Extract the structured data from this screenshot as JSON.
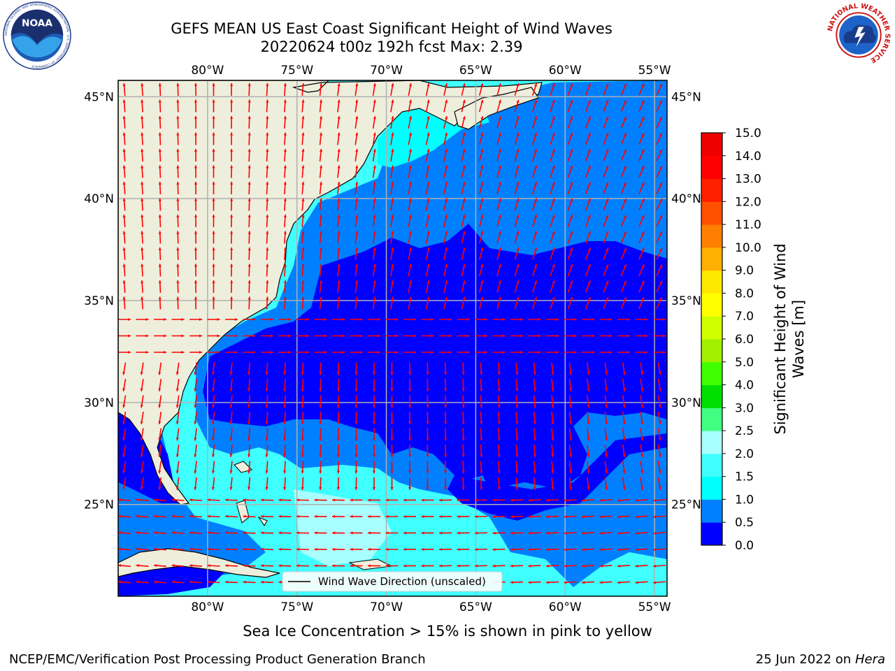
{
  "header": {
    "title_line1": "GEFS MEAN US East Coast Significant Height of Wind Waves",
    "title_line2": "20220624 t00z 192h fcst   Max: 2.39"
  },
  "logos": {
    "noaa_text": "NOAA",
    "noaa_ring_text": "NATIONAL OCEANIC AND ATMOSPHERIC ADMINISTRATION · U.S. DEPARTMENT OF COMMERCE",
    "nws_ring_text": "NATIONAL WEATHER SERVICE"
  },
  "map": {
    "lon_labels": [
      "80°W",
      "75°W",
      "70°W",
      "65°W",
      "60°W",
      "55°W"
    ],
    "lat_labels": [
      "45°N",
      "40°N",
      "35°N",
      "30°N",
      "25°N"
    ],
    "lon_values": [
      -80,
      -75,
      -70,
      -65,
      -60,
      -55
    ],
    "lat_values": [
      45,
      40,
      35,
      30,
      25
    ],
    "extent": {
      "lon": [
        -85,
        -54.3
      ],
      "lat": [
        20.5,
        45.8
      ]
    },
    "legend_label": "Wind Wave Direction (unscaled)",
    "colors": {
      "land": "#eeeedc",
      "arrows": "#ff0000",
      "grid": "#b0b0b0"
    }
  },
  "colorbar": {
    "label": "Significant Height of Wind Waves [m]",
    "ticks": [
      "0.0",
      "0.5",
      "1.0",
      "1.5",
      "2.0",
      "2.5",
      "3.0",
      "4.0",
      "5.0",
      "6.0",
      "7.0",
      "8.0",
      "9.0",
      "10.0",
      "11.0",
      "12.0",
      "13.0",
      "14.0",
      "15.0"
    ],
    "colors": [
      "#0000ff",
      "#0080ff",
      "#00ffff",
      "#40ffff",
      "#a8ffff",
      "#40ff80",
      "#00e000",
      "#40ff00",
      "#a0f000",
      "#d0ff00",
      "#ffff00",
      "#ffe800",
      "#ffb000",
      "#ff8000",
      "#ff5000",
      "#ff2000",
      "#ff0000",
      "#ee0000"
    ]
  },
  "footer": {
    "sea_ice_note": "Sea Ice Concentration > 15% is shown in pink to yellow",
    "left": "NCEP/EMC/Verification Post Processing Product Generation Branch",
    "right_date": "25 Jun 2022 on",
    "right_host": "Hera"
  }
}
